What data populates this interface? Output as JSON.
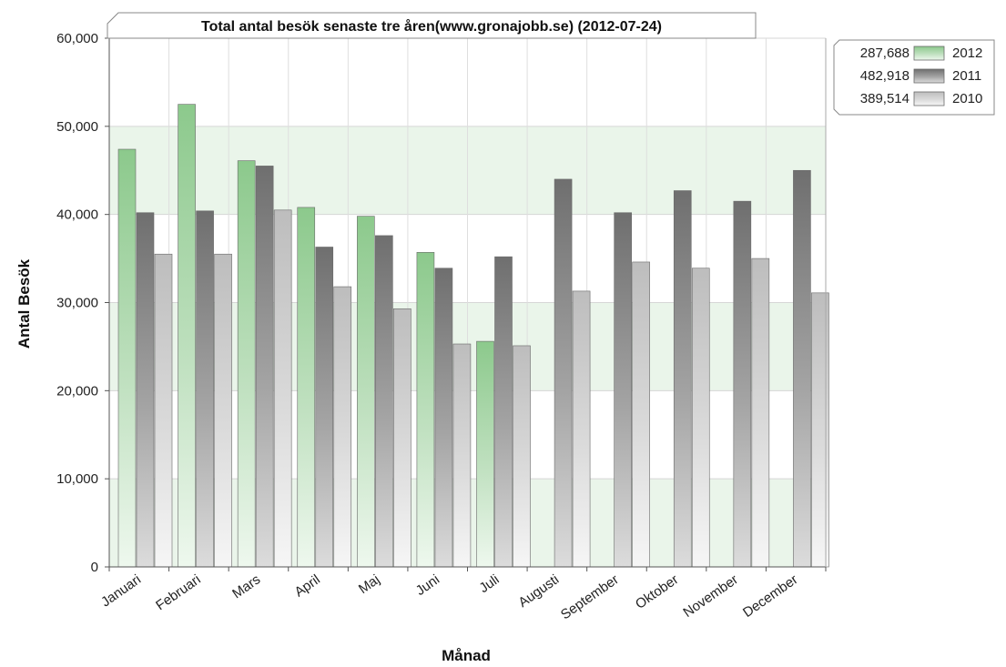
{
  "chart_data": {
    "type": "bar",
    "title": "Total antal besök senaste tre åren(www.gronajobb.se) (2012-07-24)",
    "xlabel": "Månad",
    "ylabel": "Antal Besök",
    "ylim": [
      0,
      60000
    ],
    "yticks": [
      "0",
      "10,000",
      "20,000",
      "30,000",
      "40,000",
      "50,000",
      "60,000"
    ],
    "grid": true,
    "legend_position": "top-right",
    "categories": [
      "Januari",
      "Februari",
      "Mars",
      "April",
      "Maj",
      "Juni",
      "Juli",
      "Augusti",
      "September",
      "Oktober",
      "November",
      "December"
    ],
    "series": [
      {
        "name": "2012",
        "total": "287,688",
        "color": "#8cc98c",
        "values": [
          47400,
          52500,
          46100,
          40800,
          39800,
          35700,
          25600,
          null,
          null,
          null,
          null,
          null
        ]
      },
      {
        "name": "2011",
        "total": "482,918",
        "color": "#7a7a7a",
        "values": [
          40200,
          40400,
          45500,
          36300,
          37600,
          33900,
          35200,
          44000,
          40200,
          42700,
          41500,
          45000
        ]
      },
      {
        "name": "2010",
        "total": "389,514",
        "color": "#c4c4c4",
        "values": [
          35500,
          35500,
          40500,
          31800,
          29300,
          25300,
          25100,
          31300,
          34600,
          33900,
          35000,
          31100
        ]
      }
    ]
  }
}
